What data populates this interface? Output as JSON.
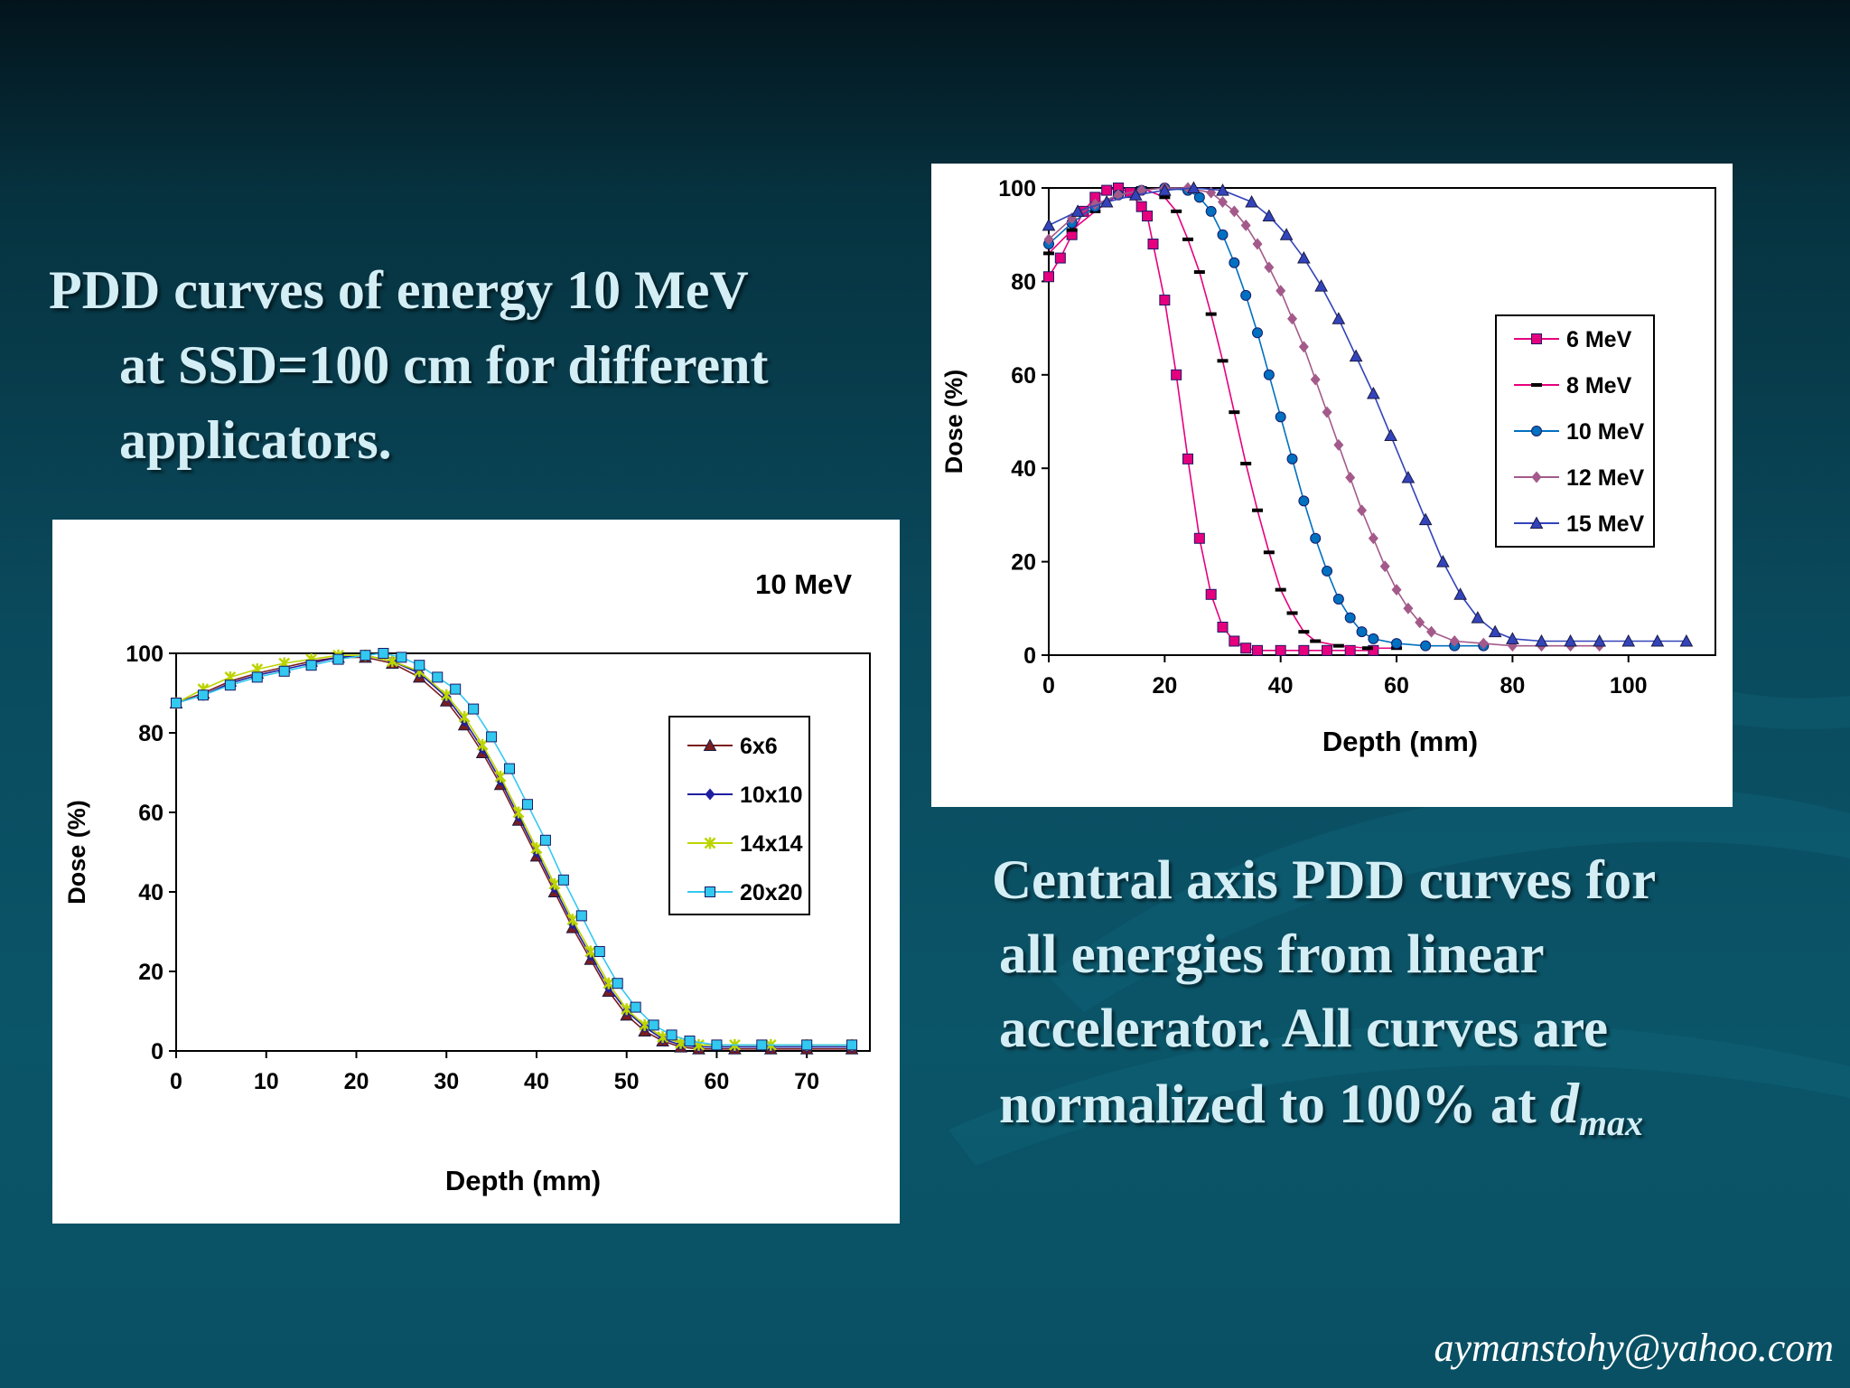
{
  "left_caption": {
    "line1": "PDD curves of energy 10 MeV",
    "line2": "at SSD=100 cm for different",
    "line3": "applicators."
  },
  "right_caption": {
    "line1": "Central axis PDD curves for",
    "line2": "all energies from linear",
    "line3": "accelerator. All curves are",
    "line4_prefix": "normalized to 100% at ",
    "line4_d": "d",
    "line4_sub": "max"
  },
  "signature": "aymanstohy@yahoo.com",
  "chart_data": [
    {
      "type": "line",
      "title": "",
      "xlabel": "Depth (mm)",
      "ylabel": "Dose (%)",
      "xlim": [
        0,
        115
      ],
      "ylim": [
        0,
        100
      ],
      "xticks": [
        0,
        20,
        40,
        60,
        80,
        100
      ],
      "yticks": [
        0,
        20,
        40,
        60,
        80,
        100
      ],
      "grid": false,
      "legend_position": "right-middle",
      "series": [
        {
          "name": "6 MeV",
          "color": "#e6007e",
          "marker": "square",
          "x": [
            0,
            2,
            4,
            6,
            8,
            10,
            12,
            14,
            16,
            17,
            18,
            20,
            22,
            24,
            26,
            28,
            30,
            32,
            34,
            36,
            40,
            44,
            48,
            52,
            56
          ],
          "y": [
            81,
            85,
            90,
            95,
            98,
            99.5,
            100,
            99,
            96,
            94,
            88,
            76,
            60,
            42,
            25,
            13,
            6,
            3,
            1.5,
            1,
            1,
            1,
            1,
            1,
            1
          ]
        },
        {
          "name": "8 MeV",
          "color": "#e6007e",
          "marker": "dash",
          "x": [
            0,
            4,
            8,
            12,
            16,
            20,
            22,
            24,
            26,
            28,
            30,
            32,
            34,
            36,
            38,
            40,
            42,
            44,
            46,
            50,
            55,
            60
          ],
          "y": [
            86,
            91,
            95,
            98.5,
            100,
            98,
            95,
            89,
            82,
            73,
            63,
            52,
            41,
            31,
            22,
            14,
            9,
            5,
            3,
            2,
            1.5,
            1.5
          ]
        },
        {
          "name": "10 MeV",
          "color": "#0070c0",
          "marker": "circle",
          "x": [
            0,
            4,
            8,
            12,
            16,
            20,
            24,
            26,
            28,
            30,
            32,
            34,
            36,
            38,
            40,
            42,
            44,
            46,
            48,
            50,
            52,
            54,
            56,
            60,
            65,
            70,
            75
          ],
          "y": [
            88,
            92.5,
            96,
            98.5,
            99.5,
            100,
            99.5,
            98,
            95,
            90,
            84,
            77,
            69,
            60,
            51,
            42,
            33,
            25,
            18,
            12,
            8,
            5,
            3.5,
            2.5,
            2,
            2,
            2
          ]
        },
        {
          "name": "12 MeV",
          "color": "#a35a8a",
          "marker": "diamond",
          "x": [
            0,
            4,
            8,
            12,
            16,
            20,
            24,
            28,
            30,
            32,
            34,
            36,
            38,
            40,
            42,
            44,
            46,
            48,
            50,
            52,
            54,
            56,
            58,
            60,
            62,
            64,
            66,
            70,
            75,
            80,
            85,
            90,
            95
          ],
          "y": [
            89,
            93.5,
            96.5,
            98.5,
            99.5,
            100,
            100,
            99,
            97,
            95,
            92,
            88,
            83,
            78,
            72,
            66,
            59,
            52,
            45,
            38,
            31,
            25,
            19,
            14,
            10,
            7,
            5,
            3,
            2.5,
            2,
            2,
            2,
            2
          ]
        },
        {
          "name": "15 MeV",
          "color": "#3344bb",
          "marker": "triangle",
          "x": [
            0,
            5,
            10,
            15,
            20,
            25,
            30,
            35,
            38,
            41,
            44,
            47,
            50,
            53,
            56,
            59,
            62,
            65,
            68,
            71,
            74,
            77,
            80,
            85,
            90,
            95,
            100,
            105,
            110
          ],
          "y": [
            92,
            95,
            97,
            98.5,
            99.5,
            100,
            99.5,
            97,
            94,
            90,
            85,
            79,
            72,
            64,
            56,
            47,
            38,
            29,
            20,
            13,
            8,
            5,
            3.5,
            3,
            3,
            3,
            3,
            3,
            3
          ]
        }
      ]
    },
    {
      "type": "line",
      "title": "10 MeV",
      "xlabel": "Depth (mm)",
      "ylabel": "Dose (%)",
      "xlim": [
        0,
        77
      ],
      "ylim": [
        0,
        100
      ],
      "xticks": [
        0,
        10,
        20,
        30,
        40,
        50,
        60,
        70
      ],
      "yticks": [
        0,
        20,
        40,
        60,
        80,
        100
      ],
      "grid": false,
      "legend_position": "right-middle",
      "series": [
        {
          "name": "6x6",
          "color": "#7a1e1e",
          "marker": "triangle",
          "x": [
            0,
            3,
            6,
            9,
            12,
            15,
            18,
            21,
            24,
            27,
            30,
            32,
            34,
            36,
            38,
            40,
            42,
            44,
            46,
            48,
            50,
            52,
            54,
            56,
            58,
            62,
            66,
            70,
            75
          ],
          "y": [
            87.5,
            90,
            93,
            95,
            96.5,
            98,
            99,
            99,
            97.5,
            94,
            88,
            82,
            75,
            67,
            58,
            49,
            40,
            31,
            23,
            15,
            9,
            5,
            2.5,
            1,
            0.5,
            0.5,
            0.5,
            0.5,
            0.5
          ]
        },
        {
          "name": "10x10",
          "color": "#1f1fa0",
          "marker": "diamond",
          "x": [
            0,
            3,
            6,
            9,
            12,
            15,
            18,
            21,
            24,
            27,
            30,
            32,
            34,
            36,
            38,
            40,
            42,
            44,
            46,
            48,
            50,
            52,
            54,
            56,
            58,
            62,
            66,
            70,
            75
          ],
          "y": [
            87.5,
            89.5,
            92.5,
            94.5,
            96,
            97.5,
            99,
            99.5,
            98,
            95,
            89,
            83,
            76,
            68,
            59,
            50,
            41,
            32,
            24,
            16,
            10,
            6,
            3,
            1.5,
            1,
            1,
            1,
            1,
            1
          ]
        },
        {
          "name": "14x14",
          "color": "#bcd400",
          "marker": "star",
          "x": [
            0,
            3,
            6,
            9,
            12,
            15,
            18,
            21,
            24,
            27,
            30,
            32,
            34,
            36,
            38,
            40,
            42,
            44,
            46,
            48,
            50,
            52,
            54,
            56,
            58,
            62,
            66,
            70,
            75
          ],
          "y": [
            87.5,
            91,
            94,
            96,
            97.5,
            98.5,
            99.5,
            99.5,
            98,
            95.5,
            89.5,
            84,
            77,
            69,
            60,
            51,
            42,
            33,
            25,
            17,
            10.5,
            6.5,
            3.5,
            2,
            1.5,
            1.5,
            1.5,
            1.5,
            1.5
          ]
        },
        {
          "name": "20x20",
          "color": "#33c8f0",
          "marker": "square",
          "x": [
            0,
            3,
            6,
            9,
            12,
            15,
            18,
            21,
            23,
            25,
            27,
            29,
            31,
            33,
            35,
            37,
            39,
            41,
            43,
            45,
            47,
            49,
            51,
            53,
            55,
            57,
            60,
            65,
            70,
            75
          ],
          "y": [
            87.5,
            89.5,
            92,
            94,
            95.5,
            97,
            98.5,
            99.5,
            100,
            99,
            97,
            94,
            91,
            86,
            79,
            71,
            62,
            53,
            43,
            34,
            25,
            17,
            11,
            6.5,
            4,
            2.5,
            1.5,
            1.5,
            1.5,
            1.5
          ]
        }
      ]
    }
  ]
}
